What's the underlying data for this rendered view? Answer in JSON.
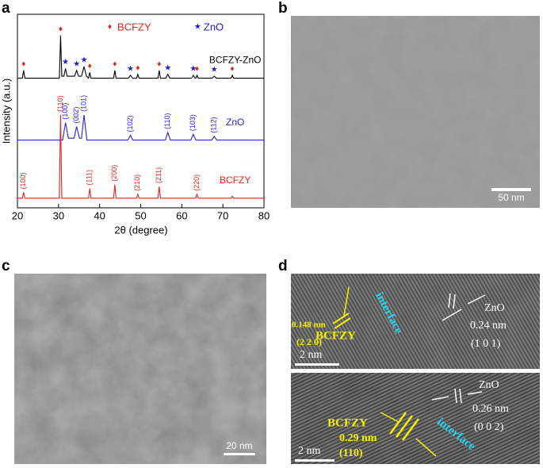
{
  "chart_data": {
    "type": "line",
    "x_label": "2θ (degree)",
    "y_label": "Intensity (a.u.)",
    "xlim": [
      20,
      80
    ],
    "xticks": [
      20,
      30,
      40,
      50,
      60,
      70,
      80
    ],
    "ylim": [
      0,
      100
    ],
    "markers": [
      {
        "symbol": "♦",
        "name": "BCFZY",
        "color": "#e8201a",
        "x": [
          21.5,
          30.5,
          37.6,
          43.7,
          49.3,
          54.5,
          63.7,
          72.3
        ]
      },
      {
        "symbol": "★",
        "name": "ZnO",
        "color": "#2020d0",
        "x": [
          31.7,
          34.4,
          36.2,
          47.5,
          56.6,
          62.8,
          67.9
        ]
      }
    ],
    "series": [
      {
        "name": "BCFZY-ZnO",
        "color": "#000000",
        "x": [
          20,
          21.2,
          21.5,
          21.8,
          30.2,
          30.5,
          30.8,
          31.3,
          31.7,
          32.1,
          33.9,
          34.4,
          34.9,
          35.6,
          36.2,
          36.8,
          37.3,
          37.6,
          37.9,
          43.4,
          43.7,
          44.0,
          47.0,
          47.5,
          48.0,
          49.0,
          49.3,
          49.6,
          54.2,
          54.5,
          54.8,
          56.1,
          56.6,
          57.1,
          62.4,
          62.8,
          63.2,
          63.4,
          63.7,
          64.0,
          67.4,
          67.9,
          68.4,
          72.0,
          72.3,
          72.6,
          80
        ],
        "values": [
          67,
          67,
          71,
          67,
          67,
          89,
          68,
          68,
          72,
          68,
          68,
          71,
          68,
          68,
          73,
          68,
          67,
          70,
          67,
          67,
          71,
          67,
          67,
          68.5,
          67,
          67,
          69,
          67,
          67,
          71,
          67,
          67,
          69,
          67,
          67,
          68.5,
          67,
          67,
          68.5,
          67,
          67,
          68,
          67,
          67,
          68.5,
          67,
          67
        ],
        "peak_labels": []
      },
      {
        "name": "ZnO",
        "color": "#2323e0",
        "x": [
          20,
          31.0,
          31.7,
          32.4,
          33.8,
          34.4,
          35.1,
          35.6,
          36.2,
          36.9,
          46.9,
          47.5,
          48.1,
          56.0,
          56.6,
          57.2,
          62.2,
          62.8,
          63.4,
          67.3,
          67.9,
          68.5,
          80
        ],
        "values": [
          35,
          35,
          44,
          36,
          36,
          42,
          36,
          36,
          48,
          35,
          35,
          37.5,
          35,
          35,
          39,
          35,
          35,
          38,
          35,
          35,
          37,
          35,
          35
        ],
        "peak_labels": [
          {
            "text": "(100)",
            "x": 31.7
          },
          {
            "text": "(002)",
            "x": 34.4
          },
          {
            "text": "(101)",
            "x": 36.2
          },
          {
            "text": "(102)",
            "x": 47.5
          },
          {
            "text": "(110)",
            "x": 56.6
          },
          {
            "text": "(103)",
            "x": 62.8
          },
          {
            "text": "(112)",
            "x": 67.9
          }
        ]
      },
      {
        "name": "BCFZY",
        "color": "#e8201a",
        "x": [
          20,
          21.2,
          21.5,
          21.8,
          30.2,
          30.5,
          30.8,
          37.3,
          37.6,
          37.9,
          43.4,
          43.7,
          44.0,
          49.0,
          49.3,
          49.6,
          54.2,
          54.5,
          54.8,
          63.4,
          63.7,
          64.0,
          72.0,
          72.3,
          72.6,
          80
        ],
        "values": [
          5,
          5,
          8,
          5,
          5,
          48,
          5,
          5,
          10,
          5,
          5,
          12,
          5,
          5,
          7,
          5,
          5,
          11,
          5,
          5,
          7,
          5,
          5,
          6,
          5,
          5
        ],
        "peak_labels": [
          {
            "text": "(100)",
            "x": 21.5
          },
          {
            "text": "(110)",
            "x": 30.5
          },
          {
            "text": "(111)",
            "x": 37.6
          },
          {
            "text": "(200)",
            "x": 43.7
          },
          {
            "text": "(210)",
            "x": 49.3
          },
          {
            "text": "(211)",
            "x": 54.5
          },
          {
            "text": "(220)",
            "x": 63.7
          }
        ]
      }
    ]
  },
  "panel_labels": [
    "a",
    "b",
    "c",
    "d"
  ],
  "b": {
    "scale_bar": "50 nm"
  },
  "c": {
    "scale_bar": "20 nm"
  },
  "d_top": {
    "spacing_left": "0.148 nm",
    "plane_left": "(2 2 0)",
    "phase_left": "BCFZY",
    "interface": "interface",
    "phase_right": "ZnO",
    "spacing_right": "0.24 nm",
    "plane_right": "(1 0 1)",
    "scale_bar": "2 nm"
  },
  "d_bottom": {
    "phase_right": "ZnO",
    "spacing_right": "0.26 nm",
    "plane_right": "(0 0 2)",
    "phase_left": "BCFZY",
    "spacing_left": "0.29 nm",
    "plane_left": "(110)",
    "interface": "interface",
    "scale_bar": "2 nm"
  }
}
